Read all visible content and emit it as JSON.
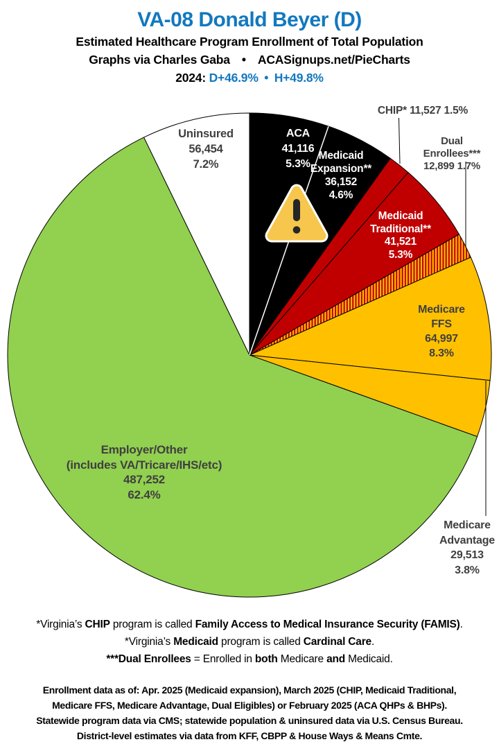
{
  "colors": {
    "accent_blue": "#1278BF",
    "label_gray": "#3F3F3F",
    "pie_black": "#000000",
    "pie_red": "#C00000",
    "pie_gold": "#FFC000",
    "pie_green": "#92D050",
    "pie_white": "#FFFFFF",
    "warning_fill": "#F7C64C"
  },
  "header": {
    "title": "VA-08 Donald Beyer (D)",
    "subtitle": "Estimated Healthcare Program Enrollment of Total Population",
    "credit": "Graphs via Charles Gaba  •  ACASignups.net/PieCharts",
    "lean_segments": [
      {
        "t": "2024: ",
        "c": "#000000"
      },
      {
        "t": "D+46.9%",
        "c": "#1278BF"
      },
      {
        "t": " • ",
        "c": "#1278BF"
      },
      {
        "t": "H+49.8%",
        "c": "#1278BF"
      }
    ]
  },
  "chart_data": {
    "type": "pie",
    "title": "Estimated Healthcare Program Enrollment of Total Population",
    "units": "people",
    "start_angle_deg": 0,
    "direction": "clockwise",
    "legend_position": "labels-on-chart",
    "total_pct": 100.1,
    "slices": [
      {
        "name": "ACA",
        "value": 41116,
        "pct": 5.3,
        "color": "#000000",
        "label": "ACA\n41,116\n5.3%",
        "label_color": "#FFFFFF"
      },
      {
        "name": "Medicaid Expansion",
        "value": 36152,
        "pct": 4.6,
        "color": "#000000",
        "label": "Medicaid\nExpansion**\n36,152\n4.6%",
        "label_color": "#FFFFFF"
      },
      {
        "name": "CHIP",
        "value": 11527,
        "pct": 1.5,
        "color": "#C00000",
        "label": "CHIP* 11,527 1.5%",
        "label_color": "#3F3F3F"
      },
      {
        "name": "Medicaid Traditional",
        "value": 41521,
        "pct": 5.3,
        "color": "#C00000",
        "label": "Medicaid\nTraditional**\n41,521\n5.3%",
        "label_color": "#FFFFFF"
      },
      {
        "name": "Dual Enrollees",
        "value": 12899,
        "pct": 1.7,
        "color": "#C00000",
        "hatch": true,
        "hatch_color": "#FFC000",
        "label": "Dual Enrollees***\n12,899 1.7%",
        "label_color": "#3F3F3F"
      },
      {
        "name": "Medicare FFS",
        "value": 64997,
        "pct": 8.3,
        "color": "#FFC000",
        "label": "Medicare FFS\n64,997\n8.3%",
        "label_color": "#3F3F3F"
      },
      {
        "name": "Medicare Advantage",
        "value": 29513,
        "pct": 3.8,
        "color": "#FFC000",
        "label": "Medicare\nAdvantage\n29,513\n3.8%",
        "label_color": "#3F3F3F"
      },
      {
        "name": "Employer/Other",
        "value": 487252,
        "pct": 62.4,
        "color": "#92D050",
        "label": "Employer/Other\n(includes VA/Tricare/IHS/etc)\n487,252\n62.4%",
        "label_color": "#3F3F3F"
      },
      {
        "name": "Uninsured",
        "value": 56454,
        "pct": 7.2,
        "color": "#FFFFFF",
        "label": "Uninsured\n56,454\n7.2%",
        "label_color": "#3F3F3F"
      }
    ]
  },
  "icons": {
    "warning": "warning-triangle"
  },
  "notes": {
    "line1": [
      {
        "t": "*Virginia’s "
      },
      {
        "t": "CHIP",
        "b": true
      },
      {
        "t": " program is called "
      },
      {
        "t": "Family Access to Medical Insurance Security (FAMIS)",
        "b": true
      },
      {
        "t": "."
      }
    ],
    "line2": [
      {
        "t": "*Virginia’s "
      },
      {
        "t": "Medicaid",
        "b": true
      },
      {
        "t": " program is called "
      },
      {
        "t": "Cardinal Care",
        "b": true
      },
      {
        "t": "."
      }
    ],
    "line3": [
      {
        "t": "***Dual Enrollees",
        "b": true
      },
      {
        "t": " = Enrolled in "
      },
      {
        "t": "both",
        "b": true
      },
      {
        "t": " Medicare "
      },
      {
        "t": "and",
        "b": true
      },
      {
        "t": " Medicaid."
      }
    ]
  },
  "source": {
    "text": "Enrollment data as of: Apr. 2025 (Medicaid expansion), March 2025 (CHIP, Medicaid Traditional,\nMedicare FFS, Medicare Advantage, Dual Eligibles) or February 2025 (ACA QHPs & BHPs).\nStatewide program data via CMS; statewide population & uninsured data via U.S. Census Bureau.\nDistrict-level estimates via data from KFF, CBPP & House Ways & Means Cmte."
  }
}
